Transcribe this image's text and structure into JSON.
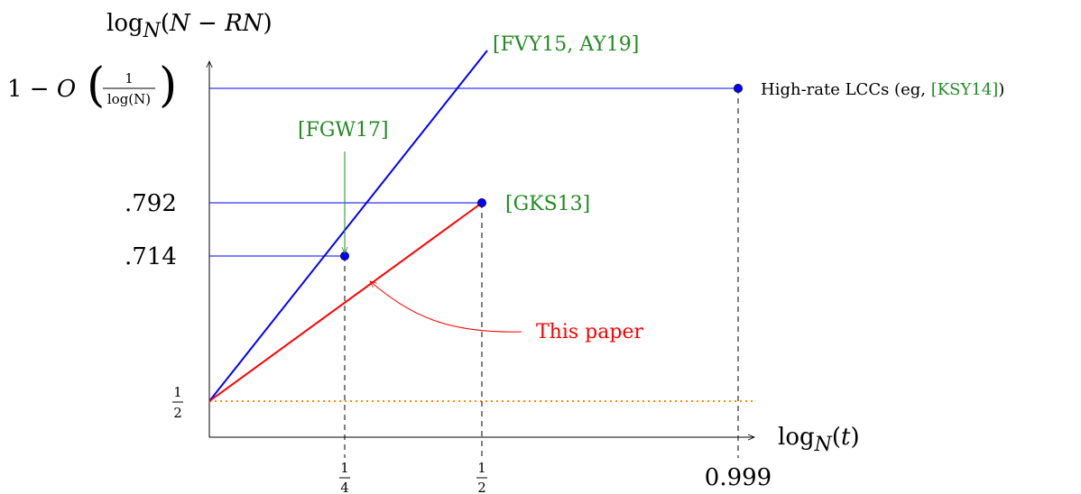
{
  "chart_data": {
    "type": "line",
    "ylabel": "log_N(N − RN)",
    "xlabel": "log_N(t)",
    "x_ticks": [
      {
        "value": 0.25,
        "num": "1",
        "den": "4"
      },
      {
        "value": 0.5,
        "num": "1",
        "den": "2"
      },
      {
        "value": 0.999,
        "text": "0.999"
      }
    ],
    "y_ticks": [
      {
        "value": 0.5,
        "num": "1",
        "den": "2"
      },
      {
        "value": 0.714,
        "text": ".714"
      },
      {
        "value": 0.792,
        "text": ".792"
      },
      {
        "value": 0.88,
        "text": "1 − O(1/log(N))",
        "prefix": "1 − O",
        "num": "1",
        "den": "log(N)"
      }
    ],
    "series": [
      {
        "label": "[FVY15, AY19]",
        "color": "#0000ff",
        "x": [
          0,
          0.49
        ],
        "y": [
          0.5,
          0.88
        ]
      },
      {
        "label": "This paper",
        "color": "#ff0000",
        "x": [
          0,
          0.5
        ],
        "y": [
          0.5,
          0.792
        ]
      }
    ],
    "points": [
      {
        "x": 0.25,
        "y": 0.714,
        "label": "[FGW17]"
      },
      {
        "x": 0.5,
        "y": 0.792,
        "label": "[GKS13]"
      },
      {
        "x": 0.999,
        "y": 0.88,
        "label_prefix": "High-rate LCCs (eg, ",
        "label_cite": "[KSY14]",
        "label_suffix": ")"
      }
    ],
    "reference_line": {
      "y": 0.5,
      "style": "dotted",
      "color": "#ff8c00"
    },
    "xlim": [
      0,
      1.0
    ],
    "ylim": [
      0.45,
      0.93
    ],
    "colors": {
      "blue": "#0000ff",
      "red": "#ff0000",
      "cite": "#228b22",
      "orange": "#ff8c00"
    }
  }
}
